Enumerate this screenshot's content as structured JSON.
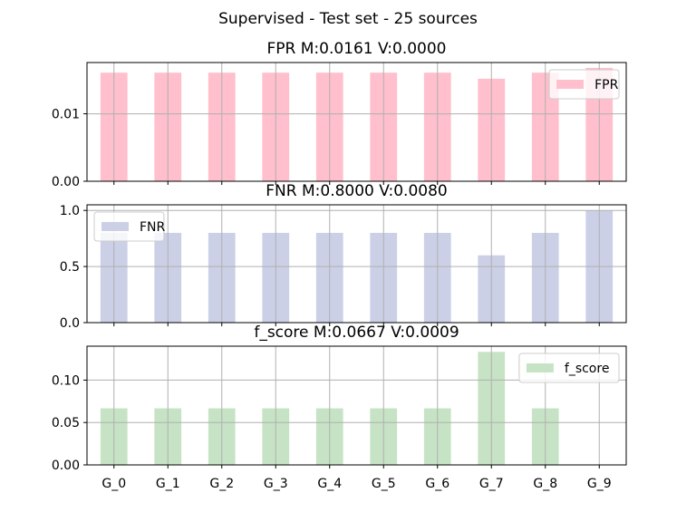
{
  "suptitle": "Supervised - Test set - 25 sources",
  "chart_data": [
    {
      "type": "bar",
      "title": "FPR M:0.0161 V:0.0000",
      "series": [
        {
          "name": "FPR",
          "values": [
            0.0161,
            0.0161,
            0.0161,
            0.0161,
            0.0161,
            0.0161,
            0.0161,
            0.0152,
            0.0161,
            0.0168
          ]
        }
      ],
      "categories": [
        "G_0",
        "G_1",
        "G_2",
        "G_3",
        "G_4",
        "G_5",
        "G_6",
        "G_7",
        "G_8",
        "G_9"
      ],
      "ylim": [
        0,
        0.0176
      ],
      "yticks": [
        {
          "v": 0,
          "label": "0.00"
        },
        {
          "v": 0.01,
          "label": "0.01"
        }
      ],
      "color": "#FFBFCC",
      "legend": "top-right",
      "grid": true,
      "xlabel": "",
      "ylabel": ""
    },
    {
      "type": "bar",
      "title": "FNR M:0.8000 V:0.0080",
      "series": [
        {
          "name": "FNR",
          "values": [
            0.8,
            0.8,
            0.8,
            0.8,
            0.8,
            0.8,
            0.8,
            0.6,
            0.8,
            1.0
          ]
        }
      ],
      "categories": [
        "G_0",
        "G_1",
        "G_2",
        "G_3",
        "G_4",
        "G_5",
        "G_6",
        "G_7",
        "G_8",
        "G_9"
      ],
      "ylim": [
        0,
        1.05
      ],
      "yticks": [
        {
          "v": 0,
          "label": "0.0"
        },
        {
          "v": 0.5,
          "label": "0.5"
        },
        {
          "v": 1.0,
          "label": "1.0"
        }
      ],
      "color": "#CBD0E7",
      "legend": "top-left",
      "grid": true,
      "xlabel": "",
      "ylabel": ""
    },
    {
      "type": "bar",
      "title": "f_score M:0.0667 V:0.0009",
      "series": [
        {
          "name": "f_score",
          "values": [
            0.0667,
            0.0667,
            0.0667,
            0.0667,
            0.0667,
            0.0667,
            0.0667,
            0.1333,
            0.0667,
            0.0
          ]
        }
      ],
      "categories": [
        "G_0",
        "G_1",
        "G_2",
        "G_3",
        "G_4",
        "G_5",
        "G_6",
        "G_7",
        "G_8",
        "G_9"
      ],
      "ylim": [
        0,
        0.14
      ],
      "yticks": [
        {
          "v": 0,
          "label": "0.00"
        },
        {
          "v": 0.05,
          "label": "0.05"
        },
        {
          "v": 0.1,
          "label": "0.10"
        }
      ],
      "color": "#C7E3C5",
      "legend": "top-right",
      "grid": true,
      "xlabel": "",
      "ylabel": ""
    }
  ]
}
